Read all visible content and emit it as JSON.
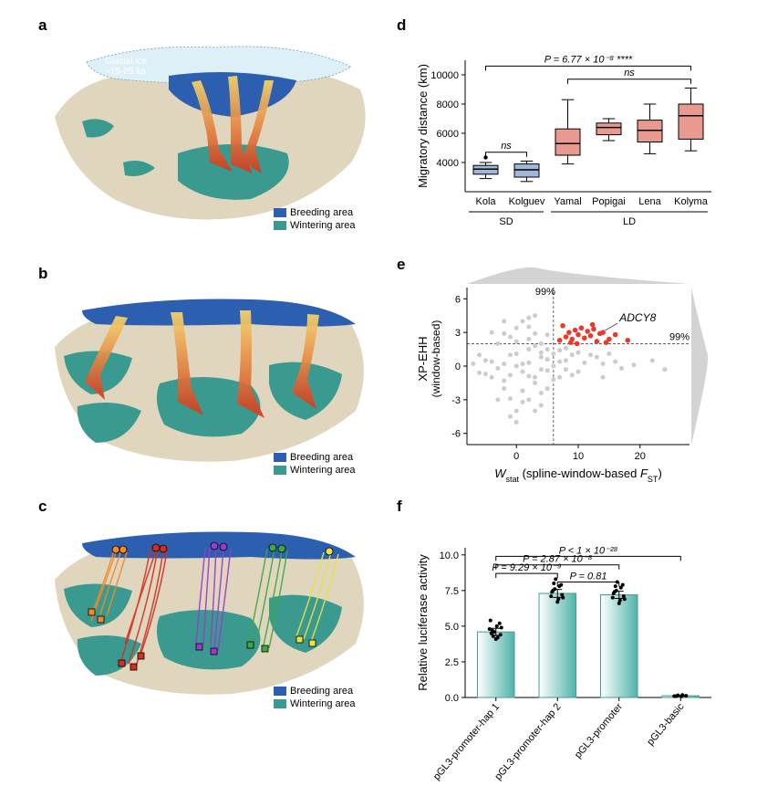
{
  "labels": {
    "a": "a",
    "b": "b",
    "c": "c",
    "d": "d",
    "e": "e",
    "f": "f"
  },
  "colors": {
    "breeding": "#2d5fb0",
    "wintering": "#3a9a90",
    "land": "#e0d6bd",
    "sea": "#ffffff",
    "ice": "#def0f7",
    "arrow_start": "#f7d56b",
    "arrow_end": "#d13a1f",
    "sd_box": "#9fb8da",
    "ld_box": "#e89a90",
    "scatter_gray": "#cccccc",
    "scatter_red": "#e8392a",
    "bar_fill1": "#ffffff",
    "bar_fill2": "#4fb3a9",
    "track_orange": "#f08a2a",
    "track_red": "#d12f22",
    "track_purple": "#9a3bcf",
    "track_green": "#3fa842",
    "track_yellow": "#ebe047"
  },
  "map_legend": {
    "breeding": "Breeding area",
    "wintering": "Wintering area"
  },
  "panel_a": {
    "glacial_label": "Glacial ice\n~15-25 ka"
  },
  "panel_d": {
    "ylabel": "Migratory distance (km)",
    "ylim": [
      2000,
      11000
    ],
    "yticks": [
      4000,
      6000,
      8000,
      10000
    ],
    "categories": [
      "Kola",
      "Kolguev",
      "Yamal",
      "Popigai",
      "Lena",
      "Kolyma"
    ],
    "group_labels": {
      "sd": "SD",
      "ld": "LD"
    },
    "groups": [
      0,
      0,
      1,
      1,
      1,
      1
    ],
    "boxes": [
      {
        "q1": 3200,
        "med": 3550,
        "q3": 3800,
        "lo": 2900,
        "hi": 4000,
        "outliers": [
          4350
        ]
      },
      {
        "q1": 3000,
        "med": 3500,
        "q3": 3900,
        "lo": 2700,
        "hi": 4100,
        "outliers": []
      },
      {
        "q1": 4500,
        "med": 5300,
        "q3": 6300,
        "lo": 3900,
        "hi": 8300,
        "outliers": []
      },
      {
        "q1": 5900,
        "med": 6400,
        "q3": 6700,
        "lo": 5500,
        "hi": 7000,
        "outliers": []
      },
      {
        "q1": 5400,
        "med": 6200,
        "q3": 6900,
        "lo": 4600,
        "hi": 8000,
        "outliers": []
      },
      {
        "q1": 5600,
        "med": 7200,
        "q3": 8000,
        "lo": 4800,
        "hi": 9100,
        "outliers": []
      }
    ],
    "sig": [
      {
        "from": 0,
        "to": 1,
        "y": 4700,
        "label": "ns"
      },
      {
        "from": 0,
        "to": 5,
        "y": 10600,
        "label": "P = 6.77 × 10⁻⁸ ****"
      },
      {
        "from": 2,
        "to": 5,
        "y": 9700,
        "label": "ns"
      }
    ]
  },
  "panel_e": {
    "xlabel": "Wstat (spline-window-based FST)",
    "ylabel": "XP-EHH\n(window-based)",
    "xlim": [
      -8,
      28
    ],
    "ylim": [
      -7,
      7
    ],
    "xticks": [
      0,
      10,
      20
    ],
    "yticks": [
      -6,
      -3,
      0,
      3,
      6
    ],
    "threshold_x": 6,
    "threshold_y": 2,
    "threshold_label": "99%",
    "annot": "ADCY8",
    "gray_points": [
      [
        -5,
        0.5
      ],
      [
        -4,
        -1
      ],
      [
        -3,
        2
      ],
      [
        -2,
        -2
      ],
      [
        -1,
        1
      ],
      [
        0,
        0
      ],
      [
        1,
        -0.5
      ],
      [
        2,
        1.5
      ],
      [
        3,
        -1.5
      ],
      [
        4,
        0.8
      ],
      [
        -4,
        3
      ],
      [
        -3,
        -3
      ],
      [
        -2,
        0.2
      ],
      [
        -1,
        -0.8
      ],
      [
        0,
        2.2
      ],
      [
        1,
        -2.2
      ],
      [
        2,
        0.3
      ],
      [
        3,
        1.8
      ],
      [
        4,
        -0.3
      ],
      [
        5,
        0.6
      ],
      [
        -2,
        4
      ],
      [
        0,
        -4
      ],
      [
        2,
        3.5
      ],
      [
        4,
        -3.5
      ],
      [
        6,
        0
      ],
      [
        8,
        0.5
      ],
      [
        10,
        -0.5
      ],
      [
        12,
        1
      ],
      [
        14,
        -1
      ],
      [
        5,
        -2
      ],
      [
        0,
        -5
      ],
      [
        3,
        4.5
      ],
      [
        -1,
        -4.5
      ],
      [
        7,
        1.4
      ],
      [
        9,
        1
      ],
      [
        11,
        0.3
      ],
      [
        13,
        0.8
      ],
      [
        15,
        1.1
      ],
      [
        17,
        -0.2
      ],
      [
        6,
        -1.2
      ],
      [
        -6,
        1
      ],
      [
        -5,
        -0.7
      ],
      [
        3,
        -4
      ],
      [
        1,
        4
      ],
      [
        2,
        -3
      ],
      [
        5,
        2.8
      ],
      [
        7,
        -1
      ],
      [
        4,
        2
      ],
      [
        8,
        1.6
      ],
      [
        10,
        1.2
      ],
      [
        1,
        0.2
      ],
      [
        -2,
        -1.3
      ],
      [
        -4,
        0.4
      ],
      [
        3,
        -1
      ],
      [
        5,
        -0.4
      ],
      [
        2,
        -0.9
      ],
      [
        4,
        1.2
      ],
      [
        6,
        1.1
      ],
      [
        -3,
        -0.2
      ],
      [
        0,
        1.1
      ],
      [
        -1,
        2.6
      ],
      [
        2,
        2.4
      ],
      [
        -2,
        2.9
      ],
      [
        1,
        -3.2
      ],
      [
        -1,
        -2.9
      ],
      [
        4,
        -2.4
      ],
      [
        2,
        4.3
      ],
      [
        0,
        3.4
      ],
      [
        5,
        1.5
      ],
      [
        3,
        2.9
      ],
      [
        9,
        -0.8
      ],
      [
        8,
        -0.3
      ],
      [
        7,
        0.4
      ],
      [
        14,
        0.2
      ],
      [
        16,
        0.4
      ],
      [
        19,
        0.1
      ],
      [
        22,
        0.5
      ],
      [
        24,
        -0.3
      ],
      [
        -7,
        0.2
      ],
      [
        -6,
        -0.6
      ]
    ],
    "red_points": [
      [
        7,
        2.3
      ],
      [
        8,
        2.6
      ],
      [
        8.5,
        3.0
      ],
      [
        9,
        2.4
      ],
      [
        9.5,
        3.2
      ],
      [
        10,
        2.8
      ],
      [
        10.5,
        3.4
      ],
      [
        11,
        2.5
      ],
      [
        11.5,
        3.1
      ],
      [
        12,
        2.7
      ],
      [
        12.5,
        3.3
      ],
      [
        13,
        2.2
      ],
      [
        13.5,
        2.9
      ],
      [
        14,
        3.0
      ],
      [
        15,
        2.4
      ],
      [
        16,
        2.8
      ],
      [
        18,
        2.3
      ],
      [
        7.5,
        3.6
      ],
      [
        8.8,
        2.1
      ],
      [
        9.8,
        2.0
      ],
      [
        12.3,
        3.7
      ],
      [
        14.5,
        2.1
      ]
    ],
    "annot_point": [
      15.5,
      3.5
    ]
  },
  "panel_f": {
    "ylabel": "Relative luciferase activity",
    "ylim": [
      0,
      10.5
    ],
    "yticks": [
      0,
      2.5,
      5.0,
      7.5,
      10.0
    ],
    "categories": [
      "pGL3-promoter-hap 1",
      "pGL3-promoter-hap 2",
      "pGL3-promoter",
      "pGL3-basic"
    ],
    "bars": [
      {
        "mean": 4.6,
        "se": 0.25,
        "jitter": [
          4.8,
          4.3,
          5.0,
          4.2,
          4.9,
          4.5,
          4.7,
          4.1,
          5.2,
          4.4,
          5.4,
          4.6
        ]
      },
      {
        "mean": 7.3,
        "se": 0.28,
        "jitter": [
          7.1,
          7.6,
          6.9,
          7.8,
          7.0,
          7.5,
          8.0,
          6.7,
          7.9,
          7.2,
          7.4,
          8.3
        ]
      },
      {
        "mean": 7.2,
        "se": 0.25,
        "jitter": [
          7.0,
          7.5,
          6.8,
          7.7,
          6.9,
          7.4,
          7.8,
          6.6,
          7.9,
          7.1,
          7.3,
          8.1
        ]
      },
      {
        "mean": 0.12,
        "se": 0.04,
        "jitter": [
          0.1,
          0.15,
          0.08,
          0.18,
          0.12,
          0.09
        ]
      }
    ],
    "sig": [
      {
        "from": 0,
        "to": 1,
        "y": 8.7,
        "label": "P = 9.29 × 10⁻⁹"
      },
      {
        "from": 0,
        "to": 2,
        "y": 9.3,
        "label": "P = 2.87 × 10⁻⁸"
      },
      {
        "from": 1,
        "to": 2,
        "y": 8.1,
        "label": "P = 0.81"
      },
      {
        "from": 0,
        "to": 3,
        "y": 9.9,
        "label": "P < 1 × 10⁻²⁸"
      }
    ]
  }
}
